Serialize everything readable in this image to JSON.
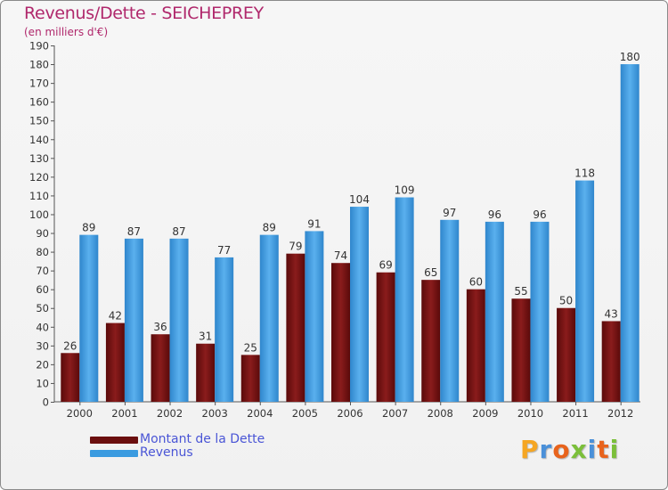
{
  "title": "Revenus/Dette - SEICHEPREY",
  "subtitle": "(en milliers d'€)",
  "legend": {
    "debt_label": "Montant de la Dette",
    "revenue_label": "Revenus"
  },
  "logo_text": "Proxiti",
  "colors": {
    "debt": "#6b0f0f",
    "revenue": "#3a9be0",
    "title": "#b0286c",
    "legend_text": "#4a55d6",
    "axis_text": "#333333"
  },
  "chart_data": {
    "type": "bar",
    "title": "Revenus/Dette - SEICHEPREY",
    "subtitle": "(en milliers d'€)",
    "categories": [
      "2000",
      "2001",
      "2002",
      "2003",
      "2004",
      "2005",
      "2006",
      "2007",
      "2008",
      "2009",
      "2010",
      "2011",
      "2012"
    ],
    "series": [
      {
        "name": "Montant de la Dette",
        "values": [
          26,
          42,
          36,
          31,
          25,
          79,
          74,
          69,
          65,
          60,
          55,
          50,
          43
        ]
      },
      {
        "name": "Revenus",
        "values": [
          89,
          87,
          87,
          77,
          89,
          91,
          104,
          109,
          97,
          96,
          96,
          118,
          180
        ]
      }
    ],
    "ylim": [
      0,
      190
    ],
    "ytick_step": 10,
    "grid": false,
    "legend_position": "bottom-left"
  }
}
